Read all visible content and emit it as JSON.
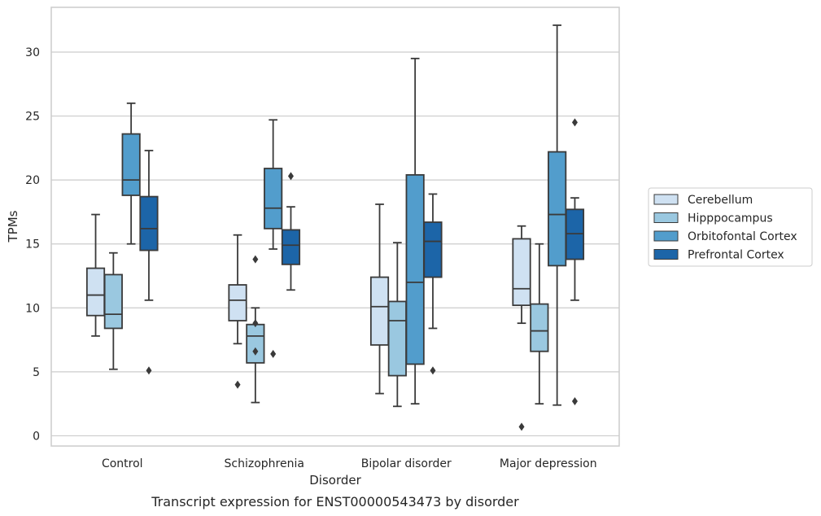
{
  "chart_data": {
    "type": "box",
    "title": "",
    "caption": "Transcript expression for ENST00000543473 by disorder",
    "xlabel": "Disorder",
    "ylabel": "TPMs",
    "ylim": [
      -0.8,
      33.5
    ],
    "yticks": [
      0,
      5,
      10,
      15,
      20,
      25,
      30
    ],
    "grid": true,
    "legend_position": "right",
    "categories": [
      "Control",
      "Schizophrenia",
      "Bipolar disorder",
      "Major depression"
    ],
    "series": [
      {
        "name": "Cerebellum",
        "color": "#cfe1f2",
        "boxes": [
          {
            "whisker_low": 7.8,
            "q1": 9.4,
            "median": 11.0,
            "q3": 13.1,
            "whisker_high": 17.3,
            "outliers": []
          },
          {
            "whisker_low": 7.2,
            "q1": 9.0,
            "median": 10.6,
            "q3": 11.8,
            "whisker_high": 15.7,
            "outliers": [
              4.0
            ]
          },
          {
            "whisker_low": 3.3,
            "q1": 7.1,
            "median": 10.1,
            "q3": 12.4,
            "whisker_high": 18.1,
            "outliers": []
          },
          {
            "whisker_low": 8.8,
            "q1": 10.2,
            "median": 11.5,
            "q3": 15.4,
            "whisker_high": 16.4,
            "outliers": [
              0.7
            ]
          }
        ]
      },
      {
        "name": "Hipppocampus",
        "color": "#9ac8e0",
        "boxes": [
          {
            "whisker_low": 5.2,
            "q1": 8.4,
            "median": 9.5,
            "q3": 12.6,
            "whisker_high": 14.3,
            "outliers": []
          },
          {
            "whisker_low": 2.6,
            "q1": 5.7,
            "median": 7.8,
            "q3": 8.7,
            "whisker_high": 10.0,
            "outliers": [
              13.8,
              8.8,
              6.6
            ]
          },
          {
            "whisker_low": 2.3,
            "q1": 4.7,
            "median": 9.0,
            "q3": 10.5,
            "whisker_high": 15.1,
            "outliers": []
          },
          {
            "whisker_low": 2.5,
            "q1": 6.6,
            "median": 8.2,
            "q3": 10.3,
            "whisker_high": 15.0,
            "outliers": []
          }
        ]
      },
      {
        "name": "Orbitofontal Cortex",
        "color": "#529dcc",
        "boxes": [
          {
            "whisker_low": 15.0,
            "q1": 18.8,
            "median": 20.0,
            "q3": 23.6,
            "whisker_high": 26.0,
            "outliers": []
          },
          {
            "whisker_low": 14.6,
            "q1": 16.2,
            "median": 17.8,
            "q3": 20.9,
            "whisker_high": 24.7,
            "outliers": [
              6.4
            ]
          },
          {
            "whisker_low": 2.5,
            "q1": 5.6,
            "median": 12.0,
            "q3": 20.4,
            "whisker_high": 29.5,
            "outliers": []
          },
          {
            "whisker_low": 2.4,
            "q1": 13.3,
            "median": 17.3,
            "q3": 22.2,
            "whisker_high": 32.1,
            "outliers": []
          }
        ]
      },
      {
        "name": "Prefrontal Cortex",
        "color": "#1c65a8",
        "boxes": [
          {
            "whisker_low": 10.6,
            "q1": 14.5,
            "median": 16.2,
            "q3": 18.7,
            "whisker_high": 22.3,
            "outliers": [
              5.1
            ]
          },
          {
            "whisker_low": 11.4,
            "q1": 13.4,
            "median": 14.9,
            "q3": 16.1,
            "whisker_high": 17.9,
            "outliers": [
              20.3
            ]
          },
          {
            "whisker_low": 8.4,
            "q1": 12.4,
            "median": 15.2,
            "q3": 16.7,
            "whisker_high": 18.9,
            "outliers": [
              5.1
            ]
          },
          {
            "whisker_low": 10.6,
            "q1": 13.8,
            "median": 15.8,
            "q3": 17.7,
            "whisker_high": 18.6,
            "outliers": [
              24.5,
              2.7
            ]
          }
        ]
      }
    ]
  }
}
